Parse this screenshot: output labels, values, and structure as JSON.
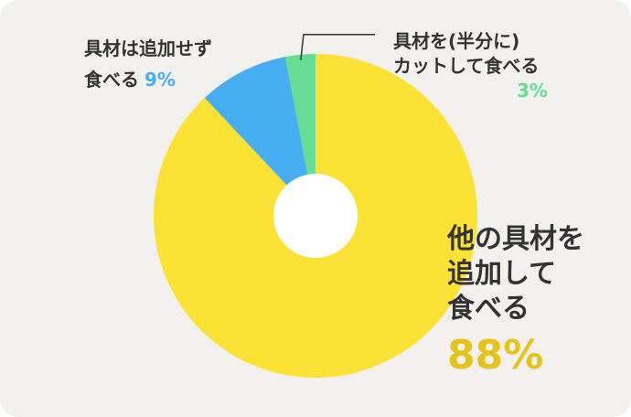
{
  "chart_data": {
    "type": "pie",
    "donut": true,
    "start_angle_deg": 0,
    "direction": "clockwise",
    "slices": [
      {
        "label_lines": [
          "他の具材を",
          "追加して",
          "食べる"
        ],
        "value": 88,
        "value_label": "88%",
        "color": "#fce234",
        "label_color": "#e6c31a"
      },
      {
        "label_lines": [
          "具材は追加せず",
          "食べる"
        ],
        "value": 9,
        "value_label": "9%",
        "color": "#48aef2",
        "label_color": "#48aef2"
      },
      {
        "label_lines": [
          "具材を(半分に)",
          "カットして食べる"
        ],
        "value": 3,
        "value_label": "3%",
        "color": "#66dc94",
        "label_color": "#66dc94"
      }
    ]
  },
  "colors": {
    "background": "#f2f1ee",
    "text": "#333333",
    "leader_line": "#333333"
  }
}
